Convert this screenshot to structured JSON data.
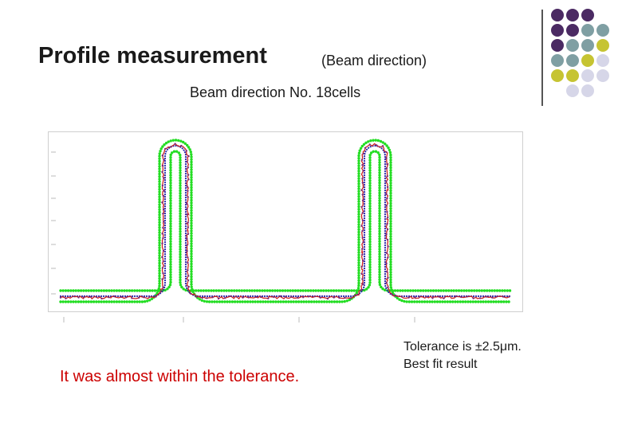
{
  "slide": {
    "title": "Profile measurement",
    "title_suffix": "(Beam direction)",
    "subtitle": "Beam direction No. 18cells",
    "note_left": "It was almost within the tolerance.",
    "note_right_line1": "Tolerance is ±2.5μm.",
    "note_right_line2": "Best fit result"
  },
  "decor": {
    "dot_colors": {
      "purple": "#4b2a63",
      "teal": "#7f9fa3",
      "olive": "#c6c432",
      "lavender": "#d6d6e8"
    },
    "dot_grid": [
      [
        "purple",
        "purple",
        "purple",
        "none"
      ],
      [
        "purple",
        "purple",
        "teal",
        "teal"
      ],
      [
        "purple",
        "teal",
        "teal",
        "olive"
      ],
      [
        "teal",
        "teal",
        "olive",
        "lavender"
      ],
      [
        "olive",
        "olive",
        "lavender",
        "lavender"
      ],
      [
        "none",
        "lavender",
        "lavender",
        "none"
      ]
    ]
  },
  "chart_data": {
    "type": "line",
    "grid": false,
    "legend": "none",
    "series_colors": {
      "tolerance": "#22dd22",
      "nominal": "#2222aa",
      "measured": "#cc2222",
      "measured_alt": "#7a2a7a"
    },
    "series": [
      {
        "key": "tolerance",
        "style": "dotted-band"
      },
      {
        "key": "nominal",
        "style": "dotted-line"
      },
      {
        "key": "measured",
        "style": "noisy-line"
      }
    ]
  }
}
